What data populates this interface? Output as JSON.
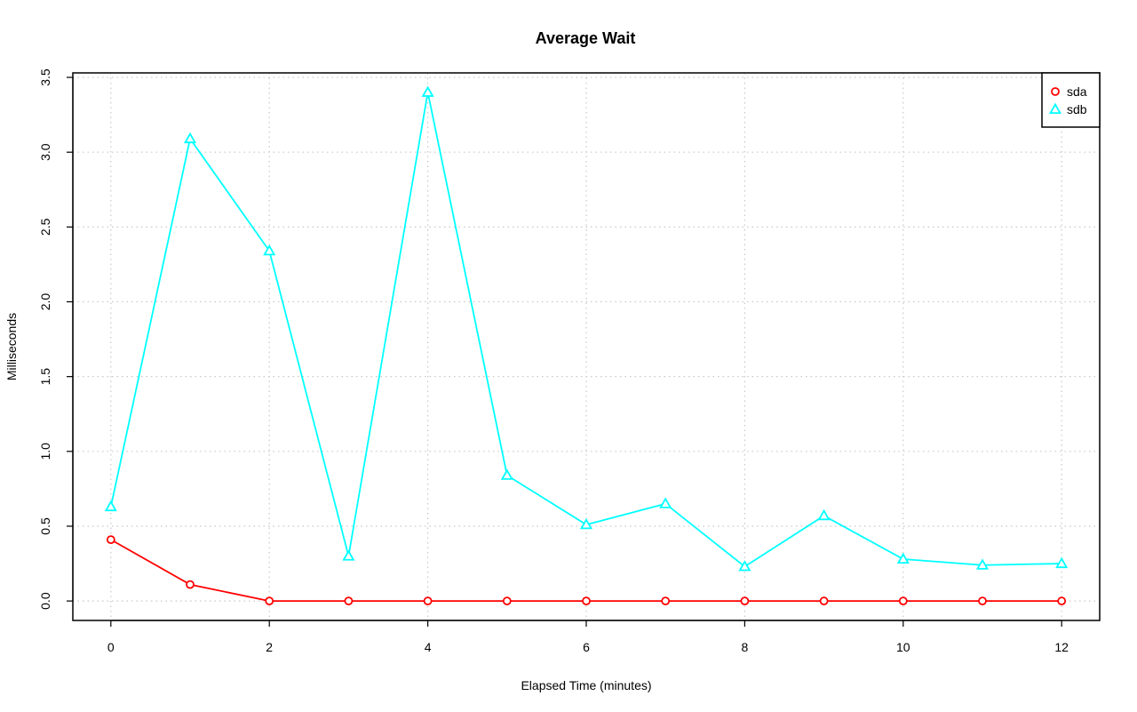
{
  "chart_data": {
    "type": "line",
    "title": "Average Wait",
    "xlabel": "Elapsed Time (minutes)",
    "ylabel": "Milliseconds",
    "xlim": [
      -0.48,
      12.48
    ],
    "ylim": [
      -0.13,
      3.53
    ],
    "xticks": [
      0,
      2,
      4,
      6,
      8,
      10,
      12
    ],
    "yticks": [
      0.0,
      0.5,
      1.0,
      1.5,
      2.0,
      2.5,
      3.0,
      3.5
    ],
    "ytick_labels": [
      "0.0",
      "0.5",
      "1.0",
      "1.5",
      "2.0",
      "2.5",
      "3.0",
      "3.5"
    ],
    "grid": true,
    "legend_position": "top-right",
    "x": [
      0,
      1,
      2,
      3,
      4,
      5,
      6,
      7,
      8,
      9,
      10,
      11,
      12
    ],
    "series": [
      {
        "name": "sda",
        "color": "#ff0000",
        "marker": "circle",
        "values": [
          0.41,
          0.11,
          0.0,
          0.0,
          0.0,
          0.0,
          0.0,
          0.0,
          0.0,
          0.0,
          0.0,
          0.0,
          0.0
        ]
      },
      {
        "name": "sdb",
        "color": "#00ffff",
        "marker": "triangle",
        "values": [
          0.63,
          3.09,
          2.34,
          0.3,
          3.4,
          0.84,
          0.51,
          0.65,
          0.23,
          0.57,
          0.28,
          0.24,
          0.25
        ]
      }
    ]
  }
}
